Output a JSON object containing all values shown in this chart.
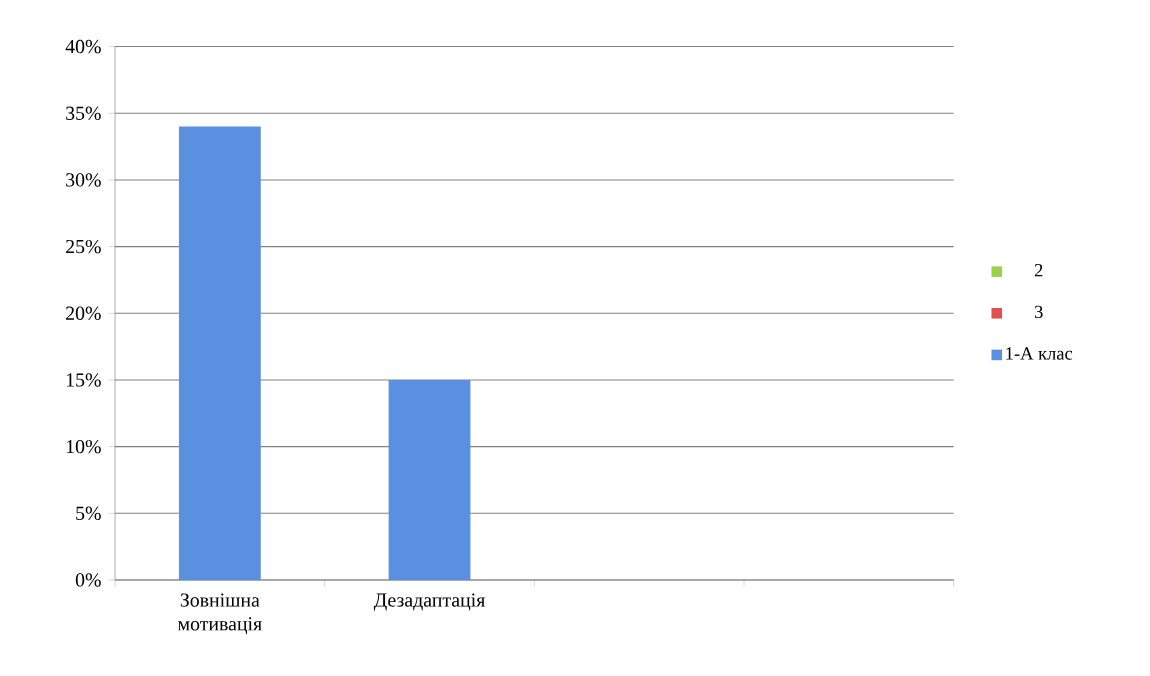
{
  "chart_data": {
    "type": "bar",
    "categories": [
      "Зовнішна мотивація",
      "Дезадаптація",
      null,
      null
    ],
    "series": [
      {
        "name": "2",
        "color": "#9bd14b",
        "values": [
          null,
          null,
          null,
          null
        ]
      },
      {
        "name": "3",
        "color": "#e0504d",
        "values": [
          null,
          null,
          null,
          null
        ]
      },
      {
        "name": "1-А клас",
        "color": "#5b8fdf",
        "values": [
          34,
          15,
          null,
          null
        ]
      }
    ],
    "ylim": [
      0,
      40
    ],
    "yticks": [
      {
        "value": 0,
        "label": "0%"
      },
      {
        "value": 5,
        "label": "5%"
      },
      {
        "value": 10,
        "label": "10%"
      },
      {
        "value": 15,
        "label": "15%"
      },
      {
        "value": 20,
        "label": "20%"
      },
      {
        "value": 25,
        "label": "25%"
      },
      {
        "value": 30,
        "label": "30%"
      },
      {
        "value": 35,
        "label": "35%"
      },
      {
        "value": 40,
        "label": "40%"
      }
    ],
    "grid": "y",
    "legend": "right"
  }
}
